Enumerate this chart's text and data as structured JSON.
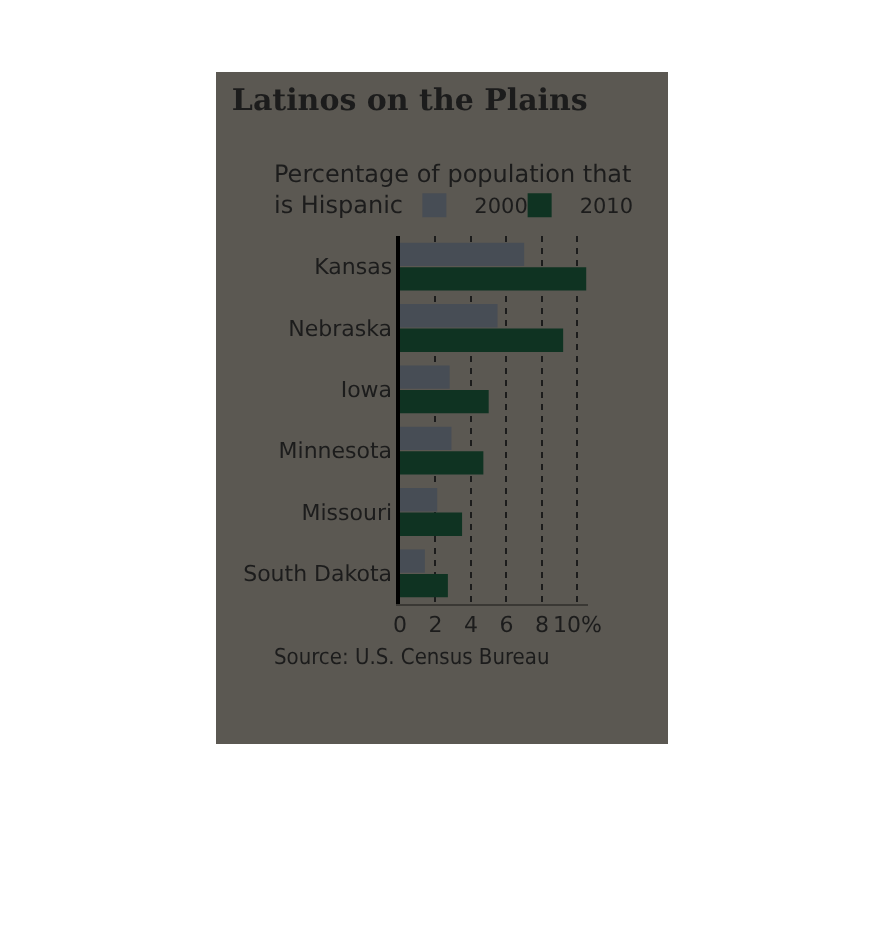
{
  "chart_data": {
    "type": "bar",
    "orientation": "horizontal",
    "title": "Latinos on the Plains",
    "subtitle": "Percentage of population that is Hispanic",
    "categories": [
      "Kansas",
      "Nebraska",
      "Iowa",
      "Minnesota",
      "Missouri",
      "South Dakota"
    ],
    "series": [
      {
        "name": "2000",
        "color": "#474d55",
        "values": [
          7.0,
          5.5,
          2.8,
          2.9,
          2.1,
          1.4
        ]
      },
      {
        "name": "2010",
        "color": "#0f3322",
        "values": [
          10.5,
          9.2,
          5.0,
          4.7,
          3.5,
          2.7
        ]
      }
    ],
    "xlim": [
      0,
      10.6
    ],
    "xticks": [
      0,
      2,
      4,
      6,
      8,
      {
        "value": 10,
        "label": "10%"
      }
    ],
    "grid": "x",
    "legend": "top right",
    "annotations": [
      "Source: U.S. Census Bureau"
    ]
  }
}
